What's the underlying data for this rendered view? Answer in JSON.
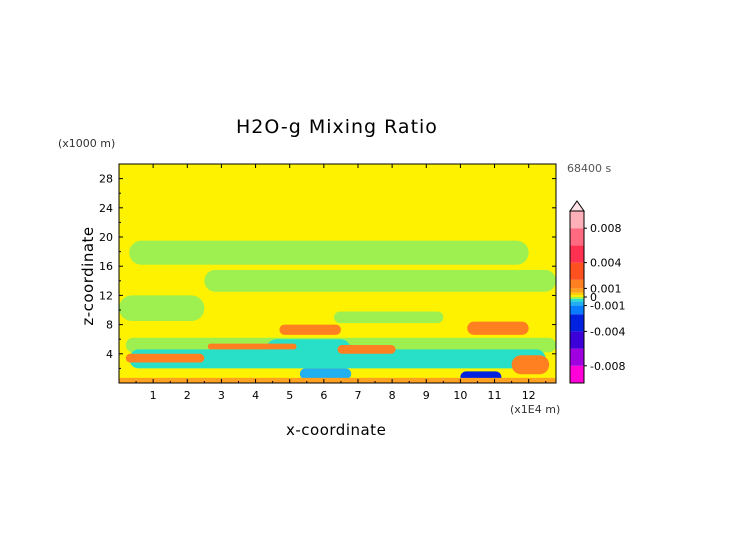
{
  "chart_data": {
    "type": "heatmap",
    "title": "H2O-g Mixing Ratio",
    "xlabel": "x-coordinate",
    "ylabel": "z-coordinate",
    "x_unit_label": "(x1E4 m)",
    "y_unit_label": "(x1000 m)",
    "time_label": "68400 s",
    "x_ticks": [
      "1",
      "2",
      "3",
      "4",
      "5",
      "6",
      "7",
      "8",
      "9",
      "10",
      "11",
      "12"
    ],
    "y_ticks": [
      "4",
      "8",
      "12",
      "16",
      "20",
      "24",
      "28"
    ],
    "xlim": [
      0,
      12.8
    ],
    "ylim": [
      0,
      30
    ],
    "colorbar": {
      "labels": [
        "0.008",
        "0.004",
        "0.001",
        "0",
        "-0.001",
        "-0.004",
        "-0.008"
      ],
      "range": [
        -0.01,
        0.01
      ],
      "bands": [
        {
          "lo": -0.01,
          "hi": -0.008,
          "color": "#ff00d8"
        },
        {
          "lo": -0.008,
          "hi": -0.006,
          "color": "#a000e0"
        },
        {
          "lo": -0.006,
          "hi": -0.004,
          "color": "#3c00d8"
        },
        {
          "lo": -0.004,
          "hi": -0.002,
          "color": "#0022e0"
        },
        {
          "lo": -0.002,
          "hi": -0.001,
          "color": "#0a7cff"
        },
        {
          "lo": -0.001,
          "hi": -0.0005,
          "color": "#20b0f0"
        },
        {
          "lo": -0.0005,
          "hi": -0.0002,
          "color": "#28e0c8"
        },
        {
          "lo": -0.0002,
          "hi": 0.0,
          "color": "#9ef050"
        },
        {
          "lo": 0.0,
          "hi": 0.0002,
          "color": "#fff200"
        },
        {
          "lo": 0.0002,
          "hi": 0.0005,
          "color": "#ffd000"
        },
        {
          "lo": 0.0005,
          "hi": 0.001,
          "color": "#ffa020"
        },
        {
          "lo": 0.001,
          "hi": 0.002,
          "color": "#ff8020"
        },
        {
          "lo": 0.002,
          "hi": 0.004,
          "color": "#ff5020"
        },
        {
          "lo": 0.004,
          "hi": 0.006,
          "color": "#ff3050"
        },
        {
          "lo": 0.006,
          "hi": 0.008,
          "color": "#ff6a80"
        },
        {
          "lo": 0.008,
          "hi": 0.01,
          "color": "#ffb0b8"
        }
      ]
    },
    "field": {
      "background_value": 0.0001,
      "regions": [
        {
          "x": [
            0,
            12.8
          ],
          "z": [
            25.5,
            30
          ],
          "value": 0.0001
        },
        {
          "x": [
            0,
            12.8
          ],
          "z": [
            21.5,
            25.5
          ],
          "value": 0.0001
        },
        {
          "x": [
            0,
            12.8
          ],
          "z": [
            20.4,
            21.2
          ],
          "value": 0.0001
        },
        {
          "x": [
            0.3,
            12
          ],
          "z": [
            16.2,
            19.5
          ],
          "value": -0.0001
        },
        {
          "x": [
            2.5,
            12.8
          ],
          "z": [
            12.5,
            15.5
          ],
          "value": -0.0001
        },
        {
          "x": [
            0,
            2.5
          ],
          "z": [
            8.5,
            12.0
          ],
          "value": -0.0001
        },
        {
          "x": [
            6.3,
            9.5
          ],
          "z": [
            8.2,
            9.8
          ],
          "value": -0.0001
        },
        {
          "x": [
            0.2,
            12.8
          ],
          "z": [
            4.2,
            6.2
          ],
          "value": -0.0001
        },
        {
          "x": [
            0.3,
            12.5
          ],
          "z": [
            2.0,
            4.6
          ],
          "value": -0.0003
        },
        {
          "x": [
            4.3,
            6.8
          ],
          "z": [
            3.0,
            6.0
          ],
          "value": -0.0003
        },
        {
          "x": [
            0.2,
            2.5
          ],
          "z": [
            2.8,
            4.0
          ],
          "value": 0.0015
        },
        {
          "x": [
            2.6,
            5.2
          ],
          "z": [
            4.6,
            5.4
          ],
          "value": 0.0015
        },
        {
          "x": [
            4.7,
            6.5
          ],
          "z": [
            6.6,
            8.0
          ],
          "value": 0.0015
        },
        {
          "x": [
            6.4,
            8.1
          ],
          "z": [
            4.0,
            5.2
          ],
          "value": 0.0015
        },
        {
          "x": [
            10.2,
            12.0
          ],
          "z": [
            6.6,
            8.4
          ],
          "value": 0.0015
        },
        {
          "x": [
            11.5,
            12.6
          ],
          "z": [
            1.2,
            3.8
          ],
          "value": 0.0015
        },
        {
          "x": [
            10.0,
            11.2
          ],
          "z": [
            0.0,
            1.6
          ],
          "value": -0.003
        },
        {
          "x": [
            5.3,
            6.8
          ],
          "z": [
            0.5,
            2.0
          ],
          "value": -0.0007
        },
        {
          "x": [
            0,
            12.8
          ],
          "z": [
            0.0,
            0.7
          ],
          "value": 0.0007
        }
      ]
    }
  }
}
